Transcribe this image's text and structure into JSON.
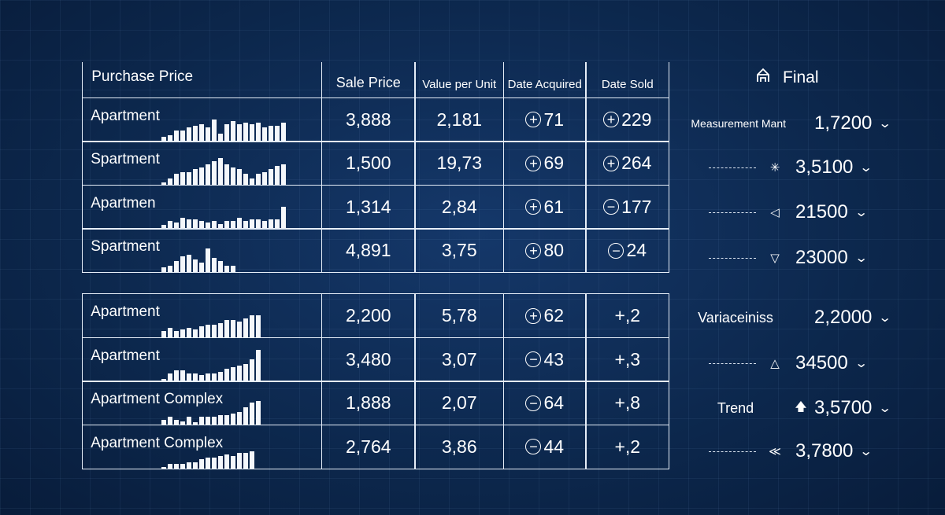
{
  "header": {
    "purchase_price": "Purchase Price",
    "sale_price": "Sale Price",
    "value_per_unit": "Value per Unit",
    "date_acquired": "Date Acquired",
    "date_sold": "Date Sold",
    "final": "Final",
    "final_icon": "home-outline-icon"
  },
  "rows1": [
    {
      "label": "Apartment",
      "sale": "3,888",
      "vpu": "2,181",
      "acq": "71",
      "acq_sign": "+",
      "sold": "229",
      "sold_sign": "+",
      "spark": [
        6,
        8,
        14,
        14,
        18,
        20,
        22,
        18,
        28,
        10,
        22,
        26,
        22,
        24,
        22,
        24,
        18,
        20,
        20,
        24
      ]
    },
    {
      "label": "Spartment",
      "sale": "1,500",
      "vpu": "19,73",
      "acq": "69",
      "acq_sign": "+",
      "sold": "264",
      "sold_sign": "+",
      "spark": [
        3,
        8,
        14,
        16,
        16,
        20,
        22,
        26,
        30,
        34,
        26,
        22,
        20,
        14,
        8,
        14,
        16,
        20,
        24,
        26
      ]
    },
    {
      "label": "Apartmen",
      "sale": "1,314",
      "vpu": "2,84",
      "acq": "61",
      "acq_sign": "+",
      "sold": "177",
      "sold_sign": "-",
      "spark": [
        5,
        10,
        8,
        14,
        12,
        12,
        10,
        8,
        10,
        6,
        10,
        10,
        14,
        10,
        12,
        12,
        10,
        12,
        12,
        28
      ]
    },
    {
      "label": "Spartment",
      "sale": "4,891",
      "vpu": "3,75",
      "acq": "80",
      "acq_sign": "+",
      "sold": "24",
      "sold_sign": "-",
      "spark": [
        6,
        8,
        14,
        20,
        22,
        16,
        12,
        30,
        18,
        14,
        8,
        8
      ]
    }
  ],
  "rows2": [
    {
      "label": "Apartment",
      "sale": "2,200",
      "vpu": "5,78",
      "acq": "62",
      "acq_sign": "+",
      "sold": "+,2",
      "spark": [
        8,
        12,
        8,
        10,
        12,
        10,
        14,
        16,
        16,
        18,
        22,
        22,
        20,
        24,
        28,
        28
      ]
    },
    {
      "label": "Apartment",
      "sale": "3,480",
      "vpu": "3,07",
      "acq": "43",
      "acq_sign": "-",
      "sold": "+,3",
      "spark": [
        3,
        10,
        14,
        14,
        10,
        10,
        8,
        10,
        10,
        12,
        16,
        18,
        20,
        22,
        28,
        40
      ]
    },
    {
      "label": "Apartment Complex",
      "sale": "1,888",
      "vpu": "2,07",
      "acq": "64",
      "acq_sign": "-",
      "sold": "+,8",
      "spark": [
        6,
        10,
        6,
        4,
        10,
        3,
        10,
        10,
        10,
        12,
        12,
        14,
        16,
        22,
        28,
        30
      ]
    },
    {
      "label": "Apartment Complex",
      "sale": "2,764",
      "vpu": "3,86",
      "acq": "44",
      "acq_sign": "-",
      "sold": "+,2",
      "spark": [
        2,
        6,
        6,
        6,
        8,
        8,
        12,
        14,
        14,
        16,
        18,
        16,
        20,
        20,
        22
      ]
    }
  ],
  "right": [
    {
      "label": "Measurement Mant",
      "glyph": "",
      "glyph_icon": "",
      "value": "1,7200"
    },
    {
      "label": "",
      "glyph": "✳",
      "glyph_icon": "burst-icon",
      "value": "3,5100"
    },
    {
      "label": "",
      "glyph": "◁",
      "glyph_icon": "triangle-left-icon",
      "value": "21500"
    },
    {
      "label": "",
      "glyph": "▽",
      "glyph_icon": "triangle-down-icon",
      "value": "23000"
    },
    {
      "label": "Variaceiniss",
      "glyph": "",
      "glyph_icon": "",
      "value": "2,2000"
    },
    {
      "label": "",
      "glyph": "△",
      "glyph_icon": "triangle-up-icon",
      "value": "34500"
    },
    {
      "label": "Trend",
      "glyph": "🡅",
      "glyph_icon": "arrow-up-icon",
      "value": "3,5700"
    },
    {
      "label": "",
      "glyph": "≪",
      "glyph_icon": "double-chevron-up-icon",
      "value": "3,7800"
    }
  ]
}
